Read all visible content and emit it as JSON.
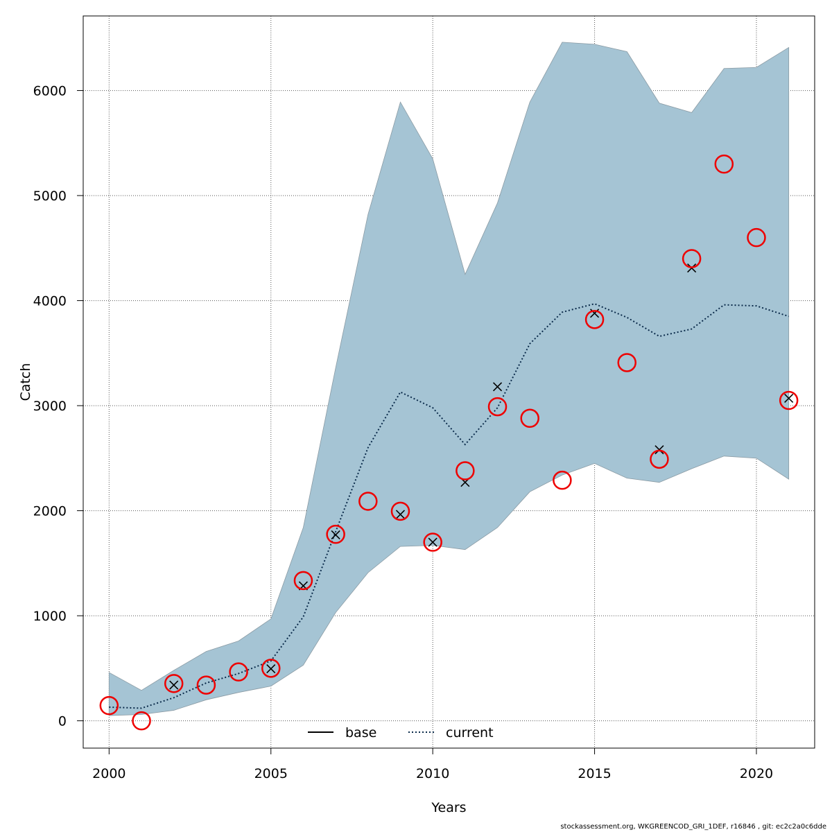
{
  "chart_data": {
    "type": "line",
    "xlabel": "Years",
    "ylabel": "Catch",
    "xlim": [
      1999.2,
      2021.8
    ],
    "ylim": [
      -260,
      6710
    ],
    "x_ticks": [
      2000,
      2005,
      2010,
      2015,
      2020
    ],
    "y_ticks": [
      0,
      1000,
      2000,
      3000,
      4000,
      5000,
      6000
    ],
    "grid": true,
    "legend_position": "bottom-center",
    "years": [
      2000,
      2001,
      2002,
      2003,
      2004,
      2005,
      2006,
      2007,
      2008,
      2009,
      2010,
      2011,
      2012,
      2013,
      2014,
      2015,
      2016,
      2017,
      2018,
      2019,
      2020,
      2021
    ],
    "band": {
      "upper": [
        460,
        290,
        480,
        660,
        760,
        970,
        1840,
        3360,
        4820,
        5890,
        5350,
        4250,
        4930,
        5890,
        6460,
        6440,
        6370,
        5880,
        5790,
        6210,
        6220,
        6410
      ],
      "lower": [
        50,
        60,
        100,
        200,
        270,
        330,
        530,
        1030,
        1410,
        1660,
        1670,
        1630,
        1840,
        2180,
        2340,
        2450,
        2310,
        2270,
        2400,
        2520,
        2500,
        2300
      ]
    },
    "series": [
      {
        "name": "base",
        "style": "solid",
        "values": []
      },
      {
        "name": "current",
        "style": "dotted",
        "values": [
          130,
          120,
          220,
          360,
          450,
          570,
          990,
          1800,
          2600,
          3130,
          2980,
          2630,
          2980,
          3590,
          3890,
          3970,
          3840,
          3660,
          3730,
          3960,
          3950,
          3850
        ]
      }
    ],
    "observed_circles": [
      {
        "year": 2000,
        "value": 145
      },
      {
        "year": 2001,
        "value": 0
      },
      {
        "year": 2002,
        "value": 355
      },
      {
        "year": 2003,
        "value": 340
      },
      {
        "year": 2004,
        "value": 465
      },
      {
        "year": 2005,
        "value": 500
      },
      {
        "year": 2006,
        "value": 1335
      },
      {
        "year": 2007,
        "value": 1775
      },
      {
        "year": 2008,
        "value": 2090
      },
      {
        "year": 2009,
        "value": 1995
      },
      {
        "year": 2010,
        "value": 1700
      },
      {
        "year": 2011,
        "value": 2380
      },
      {
        "year": 2012,
        "value": 2990
      },
      {
        "year": 2013,
        "value": 2880
      },
      {
        "year": 2014,
        "value": 2290
      },
      {
        "year": 2015,
        "value": 3820
      },
      {
        "year": 2016,
        "value": 3410
      },
      {
        "year": 2017,
        "value": 2490
      },
      {
        "year": 2018,
        "value": 4400
      },
      {
        "year": 2019,
        "value": 5300
      },
      {
        "year": 2020,
        "value": 4600
      },
      {
        "year": 2021,
        "value": 3050
      }
    ],
    "crosses": [
      {
        "year": 2002,
        "value": 340
      },
      {
        "year": 2005,
        "value": 495
      },
      {
        "year": 2006,
        "value": 1285
      },
      {
        "year": 2007,
        "value": 1770
      },
      {
        "year": 2009,
        "value": 1965
      },
      {
        "year": 2010,
        "value": 1700
      },
      {
        "year": 2011,
        "value": 2270
      },
      {
        "year": 2012,
        "value": 3180
      },
      {
        "year": 2015,
        "value": 3880
      },
      {
        "year": 2017,
        "value": 2580
      },
      {
        "year": 2018,
        "value": 4310
      },
      {
        "year": 2021,
        "value": 3070
      }
    ],
    "colors": {
      "band": "#a5c4d4",
      "band_edge": "#8a9aa3",
      "current": "#0a2a4a",
      "circles": "#ee0000",
      "crosses": "#000000",
      "grid": "#555555"
    }
  },
  "footer": "stockassessment.org, WKGREENCOD_GRI_1DEF, r16846 , git: ec2c2a0c6dde"
}
